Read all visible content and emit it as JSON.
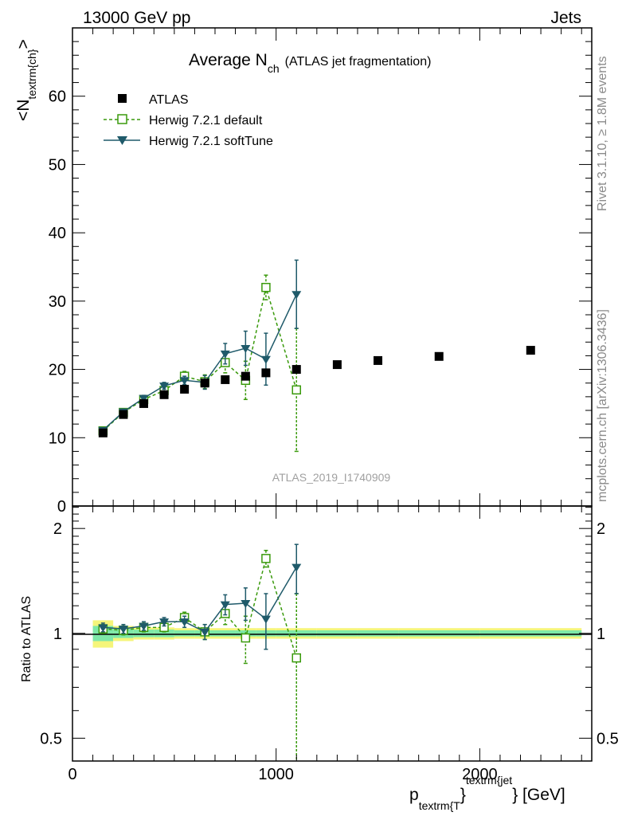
{
  "header": {
    "energy_label": "13000 GeV pp",
    "category_label": "Jets"
  },
  "side_text": {
    "rivet": "Rivet 3.1.10, ≥ 1.8M events",
    "mcplots": "mcplots.cern.ch [arXiv:1306.3436]"
  },
  "colors": {
    "atlas": "#000000",
    "herwig_default": "#3a9a0c",
    "herwig_softtune": "#1f5a6a",
    "band_inner": "#7ee8a8",
    "band_outer": "#f5f57a",
    "watermark": "#a0a0a0"
  },
  "chart_data": [
    {
      "type": "scatter",
      "title_main": "Average N",
      "title_sub": "ch",
      "title_rest": "(ATLAS jet fragmentation)",
      "ylabel_main": "<N",
      "ylabel_sub": "textrm{ch}",
      "ylabel_end": ">",
      "xlabel_main": "p",
      "xlabel_sub": "textrm{T",
      "xlabel_brace": "}",
      "xlabel_sup": "textrm{jet",
      "xlabel_end": "} [GeV]",
      "analysis_id": "ATLAS_2019_I1740909",
      "xlim": [
        0,
        2550
      ],
      "ylim": [
        0,
        70
      ],
      "yticks": [
        0,
        10,
        20,
        30,
        40,
        50,
        60
      ],
      "xticks": [
        0,
        1000,
        2000
      ],
      "legend_position": "top-left",
      "series": [
        {
          "name": "ATLAS",
          "marker": "square-filled",
          "x": [
            150,
            250,
            350,
            450,
            550,
            650,
            750,
            850,
            950,
            1100,
            1300,
            1500,
            1800,
            2250
          ],
          "y": [
            10.7,
            13.4,
            15.0,
            16.3,
            17.1,
            18.0,
            18.5,
            19.0,
            19.5,
            20.0,
            20.7,
            21.3,
            21.9,
            22.8
          ]
        },
        {
          "name": "Herwig 7.2.1 default",
          "marker": "square-open",
          "line": "dashed",
          "x": [
            150,
            250,
            350,
            450,
            550,
            650,
            750,
            850,
            950,
            1100
          ],
          "y": [
            11.0,
            13.7,
            15.6,
            16.9,
            19.0,
            18.2,
            21.0,
            18.4,
            32.0,
            17.0
          ],
          "err": [
            0.3,
            0.4,
            0.4,
            0.5,
            0.7,
            1.0,
            1.5,
            2.8,
            1.8,
            9.0
          ]
        },
        {
          "name": "Herwig 7.2.1 softTune",
          "marker": "triangle-down-filled",
          "line": "solid",
          "x": [
            150,
            250,
            350,
            450,
            550,
            650,
            750,
            850,
            950,
            1100
          ],
          "y": [
            11.1,
            13.8,
            15.8,
            17.6,
            18.4,
            18.1,
            22.3,
            23.1,
            21.5,
            31.0
          ],
          "err": [
            0.3,
            0.4,
            0.4,
            0.5,
            0.6,
            1.0,
            1.5,
            2.5,
            3.8,
            5.0
          ]
        }
      ]
    },
    {
      "type": "line",
      "ylabel": "Ratio to ATLAS",
      "ylim": [
        0.43,
        2.32
      ],
      "yscale": "log",
      "yticks": [
        0.5,
        1,
        2
      ],
      "ytick_labels": [
        "0.5",
        "1",
        "2"
      ],
      "x_ticklabels": [
        "0",
        "1000",
        "2000"
      ],
      "reference_band": {
        "x_edges": [
          100,
          200,
          300,
          400,
          500,
          600,
          700,
          800,
          900,
          1000,
          1200,
          1400,
          1600,
          2000,
          2500
        ],
        "inner": [
          0.05,
          0.03,
          0.025,
          0.025,
          0.02,
          0.02,
          0.02,
          0.02,
          0.02,
          0.02,
          0.02,
          0.02,
          0.02,
          0.02
        ],
        "outer": [
          0.09,
          0.05,
          0.04,
          0.04,
          0.035,
          0.035,
          0.035,
          0.035,
          0.035,
          0.035,
          0.035,
          0.035,
          0.035,
          0.035
        ]
      },
      "series": [
        {
          "name": "Herwig 7.2.1 default",
          "x": [
            150,
            250,
            350,
            450,
            550,
            650,
            750,
            850,
            950,
            1100
          ],
          "y": [
            1.03,
            1.02,
            1.04,
            1.04,
            1.11,
            1.01,
            1.14,
            0.97,
            1.64,
            0.85
          ],
          "err": [
            0.03,
            0.03,
            0.03,
            0.03,
            0.04,
            0.05,
            0.08,
            0.15,
            0.09,
            0.45
          ]
        },
        {
          "name": "Herwig 7.2.1 softTune",
          "x": [
            150,
            250,
            350,
            450,
            550,
            650,
            750,
            850,
            950,
            1100
          ],
          "y": [
            1.04,
            1.03,
            1.05,
            1.08,
            1.08,
            1.01,
            1.21,
            1.22,
            1.1,
            1.55
          ],
          "err": [
            0.03,
            0.03,
            0.03,
            0.03,
            0.04,
            0.05,
            0.08,
            0.13,
            0.2,
            0.25
          ]
        }
      ]
    }
  ]
}
